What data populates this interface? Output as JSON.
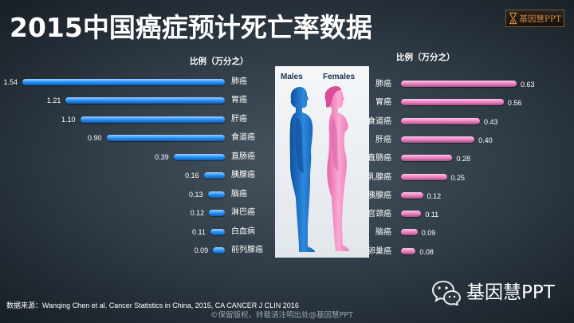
{
  "slide": {
    "title": "2015中国癌症预计死亡率数据",
    "logo_icon": "hourglass-icon",
    "logo_text": "基因慧PPT",
    "source_note": "数据来源：Wanqing Chen et al. Cancer Statistics in China, 2015, CA CANCER J CLIN 2016",
    "copyright": "©保留版权，转载请注明出处@基因慧PPT",
    "brand_icon": "wechat-icon",
    "brand_name": "基因慧PPT"
  },
  "figure": {
    "male_label": "Males",
    "female_label": "Females"
  },
  "colors": {
    "background": "#2f3b46",
    "text": "#ffffff",
    "muted_text": "#9aa6b2",
    "logo_text": "#d08a38",
    "figure_label": "#1b2d4f",
    "male_figure": "#1f6fc6",
    "female_figure": "#f27ab8"
  },
  "chart_data": [
    {
      "type": "bar",
      "orientation": "horizontal",
      "unit_label": "比例（万分之）",
      "categories": [
        "肺癌",
        "胃癌",
        "肝癌",
        "食道癌",
        "直肠癌",
        "胰腺癌",
        "脑癌",
        "淋巴癌",
        "白血病",
        "前列腺癌"
      ],
      "values": [
        1.54,
        1.21,
        1.1,
        0.9,
        0.39,
        0.16,
        0.13,
        0.12,
        0.11,
        0.09
      ],
      "data_labels": [
        "1.54",
        "1.21",
        "1.10",
        "0.90",
        "0.39",
        "0.16",
        "0.13",
        "0.12",
        "0.11",
        "0.09"
      ],
      "bar_color": "#1e8fff",
      "grid": false,
      "legend": "none"
    },
    {
      "type": "bar",
      "orientation": "horizontal",
      "unit_label": "比例（万分之）",
      "categories": [
        "肺癌",
        "胃癌",
        "食道癌",
        "肝癌",
        "直肠癌",
        "乳腺癌",
        "胰腺癌",
        "宫颈癌",
        "脑癌",
        "卵巢癌"
      ],
      "values": [
        0.63,
        0.56,
        0.43,
        0.4,
        0.28,
        0.25,
        0.12,
        0.11,
        0.09,
        0.08
      ],
      "data_labels": [
        "0.63",
        "0.56",
        "0.43",
        "0.40",
        "0.28",
        "0.25",
        "0.12",
        "0.11",
        "0.09",
        "0.08"
      ],
      "bar_color": "#f27cc4",
      "grid": false,
      "legend": "none"
    }
  ]
}
